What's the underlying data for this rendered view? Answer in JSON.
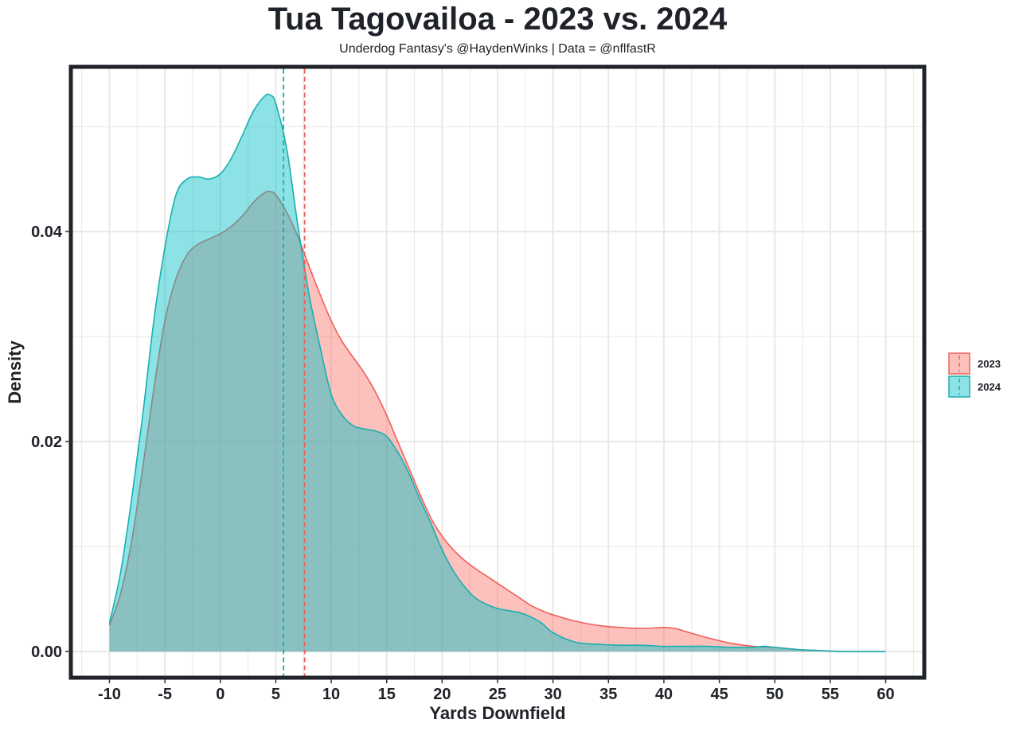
{
  "chart_data": {
    "type": "area",
    "title": "Tua Tagovailoa - 2023 vs. 2024",
    "subtitle": "Underdog Fantasy's @HaydenWinks | Data = @nflfastR",
    "xlabel": "Yards Downfield",
    "ylabel": "Density",
    "xlim": [
      -13.3,
      63.3
    ],
    "ylim": [
      -0.0023,
      0.0555
    ],
    "x_ticks": [
      -10,
      -5,
      0,
      5,
      10,
      15,
      20,
      25,
      30,
      35,
      40,
      45,
      50,
      55,
      60
    ],
    "y_ticks": [
      0.0,
      0.02,
      0.04
    ],
    "y_tick_labels": [
      "0.00",
      "0.02",
      "0.04"
    ],
    "grid": true,
    "legend_position": "right",
    "series": [
      {
        "name": "2023",
        "color": "#f0605a",
        "fill": "#f8766d",
        "mean": 7.6,
        "x": [
          -10,
          -9,
          -8,
          -7,
          -6,
          -5,
          -4,
          -3,
          -2,
          -1,
          0,
          1,
          2,
          3,
          4,
          4.5,
          5,
          6,
          7,
          8,
          9,
          10,
          11,
          12,
          13,
          14,
          15,
          16,
          17,
          18,
          19,
          20,
          21,
          22,
          23,
          24,
          25,
          26,
          27,
          28,
          29,
          30,
          32,
          34,
          36,
          38,
          40,
          41,
          42,
          44,
          46,
          48,
          50,
          52,
          54,
          56,
          58,
          60
        ],
        "y": [
          0.0025,
          0.0055,
          0.0105,
          0.0175,
          0.025,
          0.0315,
          0.0355,
          0.0378,
          0.0388,
          0.0393,
          0.0398,
          0.0405,
          0.0415,
          0.0428,
          0.0437,
          0.0438,
          0.0435,
          0.0418,
          0.0395,
          0.0367,
          0.034,
          0.0315,
          0.0295,
          0.028,
          0.0265,
          0.0247,
          0.0225,
          0.02,
          0.0175,
          0.015,
          0.0127,
          0.011,
          0.0097,
          0.0087,
          0.0079,
          0.0072,
          0.0065,
          0.0058,
          0.0051,
          0.0044,
          0.0039,
          0.0035,
          0.0029,
          0.0025,
          0.0023,
          0.0022,
          0.0023,
          0.0022,
          0.0019,
          0.0013,
          0.0008,
          0.0005,
          0.0004,
          0.0002,
          0.0001,
          0.0,
          0.0,
          0.0
        ]
      },
      {
        "name": "2024",
        "color": "#1aafb0",
        "fill": "#00bfc4",
        "mean": 5.7,
        "x": [
          -10,
          -9,
          -8,
          -7,
          -6,
          -5,
          -4,
          -3,
          -2,
          -1,
          0,
          1,
          2,
          3,
          4,
          4.5,
          5,
          6,
          7,
          8,
          9,
          10,
          11,
          12,
          13,
          14,
          15,
          16,
          17,
          18,
          19,
          20,
          21,
          22,
          23,
          24,
          25,
          26,
          27,
          28,
          29,
          30,
          32,
          34,
          36,
          38,
          40,
          42,
          44,
          46,
          48,
          49,
          50,
          52,
          54,
          56,
          58,
          60
        ],
        "y": [
          0.0027,
          0.0075,
          0.0145,
          0.0225,
          0.0315,
          0.0385,
          0.0435,
          0.045,
          0.0452,
          0.045,
          0.0455,
          0.047,
          0.0492,
          0.0515,
          0.0529,
          0.053,
          0.0522,
          0.0478,
          0.0405,
          0.034,
          0.029,
          0.0245,
          0.0225,
          0.0215,
          0.0212,
          0.021,
          0.0205,
          0.019,
          0.017,
          0.0145,
          0.0122,
          0.0097,
          0.0077,
          0.0062,
          0.0051,
          0.0045,
          0.0041,
          0.0039,
          0.0037,
          0.0033,
          0.0027,
          0.0018,
          0.0009,
          0.0007,
          0.0006,
          0.0006,
          0.0005,
          0.0005,
          0.0005,
          0.0004,
          0.0004,
          0.0005,
          0.0004,
          0.0002,
          0.0001,
          0.0,
          0.0,
          0.0
        ]
      }
    ]
  },
  "legend": {
    "items": [
      {
        "label": "2023",
        "color": "#f0605a",
        "fill": "#f8766d"
      },
      {
        "label": "2024",
        "color": "#1aafb0",
        "fill": "#00bfc4"
      }
    ]
  }
}
